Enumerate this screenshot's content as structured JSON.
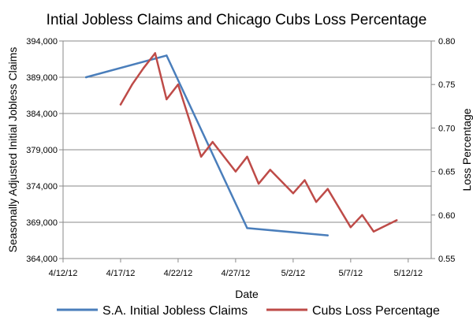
{
  "chart_data": {
    "type": "line",
    "title": "Intial Jobless Claims and Chicago Cubs Loss Percentage",
    "xlabel": "Date",
    "ylabel_left": "Seasonally Adjusted Initial Jobless Claims",
    "ylabel_right": "Loss Percentage",
    "x_ticks": [
      "4/12/12",
      "4/17/12",
      "4/22/12",
      "4/27/12",
      "5/2/12",
      "5/7/12",
      "5/12/12"
    ],
    "xlim": [
      "2012-04-12",
      "2012-05-14"
    ],
    "ylim_left": [
      364000,
      394000
    ],
    "y_ticks_left": [
      "364,000",
      "369,000",
      "374,000",
      "379,000",
      "384,000",
      "389,000",
      "394,000"
    ],
    "ylim_right": [
      0.55,
      0.8
    ],
    "y_ticks_right": [
      "0.55",
      "0.60",
      "0.65",
      "0.70",
      "0.75",
      "0.80"
    ],
    "grid": "horizontal",
    "legend_position": "bottom",
    "series": [
      {
        "name": "S.A. Initial Jobless Claims",
        "axis": "left",
        "color": "#4a7ebb",
        "x": [
          "2012-04-14",
          "2012-04-21",
          "2012-04-28",
          "2012-05-05"
        ],
        "y": [
          389000,
          392000,
          368200,
          367200
        ]
      },
      {
        "name": "Cubs Loss Percentage",
        "axis": "right",
        "color": "#be4b48",
        "x": [
          "2012-04-17",
          "2012-04-18",
          "2012-04-19",
          "2012-04-20",
          "2012-04-21",
          "2012-04-22",
          "2012-04-24",
          "2012-04-25",
          "2012-04-27",
          "2012-04-28",
          "2012-04-29",
          "2012-04-30",
          "2012-05-02",
          "2012-05-03",
          "2012-05-04",
          "2012-05-05",
          "2012-05-07",
          "2012-05-08",
          "2012-05-09",
          "2012-05-11"
        ],
        "y": [
          0.727,
          0.75,
          0.769,
          0.786,
          0.733,
          0.75,
          0.667,
          0.684,
          0.65,
          0.667,
          0.636,
          0.652,
          0.625,
          0.64,
          0.615,
          0.63,
          0.586,
          0.6,
          0.581,
          0.594
        ]
      }
    ]
  }
}
